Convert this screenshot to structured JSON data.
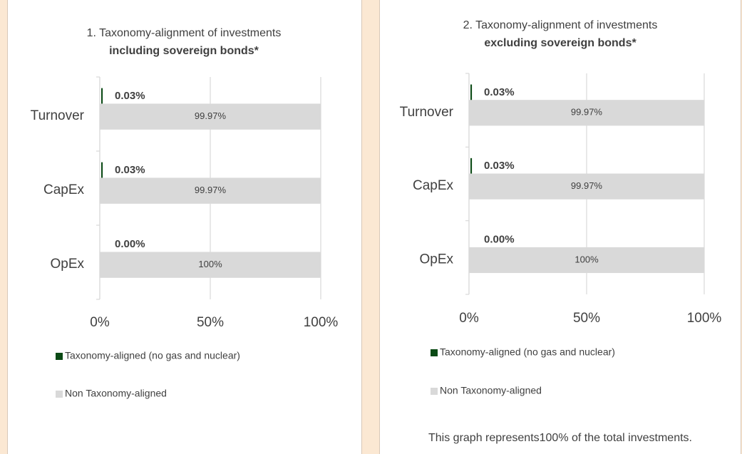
{
  "chart_data": [
    {
      "type": "bar",
      "orientation": "horizontal",
      "title": "1. Taxonomy-alignment of investments",
      "subtitle": "including sovereign bonds*",
      "categories": [
        "Turnover",
        "CapEx",
        "OpEx"
      ],
      "series": [
        {
          "name": "Taxonomy-aligned (no gas and nuclear)",
          "color": "#0b4a15",
          "values": [
            0.03,
            0.03,
            0.0
          ],
          "value_labels": [
            "0.03%",
            "0.03%",
            "0.00%"
          ]
        },
        {
          "name": "Non Taxonomy-aligned",
          "color": "#d9d9d9",
          "values": [
            99.97,
            99.97,
            100
          ],
          "value_labels": [
            "99.97%",
            "99.97%",
            "100%"
          ]
        }
      ],
      "xlim": [
        0,
        100
      ],
      "xticks": [
        {
          "value": 0,
          "label": "0%"
        },
        {
          "value": 50,
          "label": "50%"
        },
        {
          "value": 100,
          "label": "100%"
        }
      ],
      "grid": true,
      "legend": "bottom"
    },
    {
      "type": "bar",
      "orientation": "horizontal",
      "title": "2. Taxonomy-alignment of investments",
      "subtitle": "excluding sovereign bonds*",
      "categories": [
        "Turnover",
        "CapEx",
        "OpEx"
      ],
      "series": [
        {
          "name": "Taxonomy-aligned (no gas and nuclear)",
          "color": "#0b4a15",
          "values": [
            0.03,
            0.03,
            0.0
          ],
          "value_labels": [
            "0.03%",
            "0.03%",
            "0.00%"
          ]
        },
        {
          "name": "Non Taxonomy-aligned",
          "color": "#d9d9d9",
          "values": [
            99.97,
            99.97,
            100
          ],
          "value_labels": [
            "99.97%",
            "99.97%",
            "100%"
          ]
        }
      ],
      "xlim": [
        0,
        100
      ],
      "xticks": [
        {
          "value": 0,
          "label": "0%"
        },
        {
          "value": 50,
          "label": "50%"
        },
        {
          "value": 100,
          "label": "100%"
        }
      ],
      "grid": true,
      "legend": "bottom",
      "note": "This graph represents100% of the total investments."
    }
  ]
}
